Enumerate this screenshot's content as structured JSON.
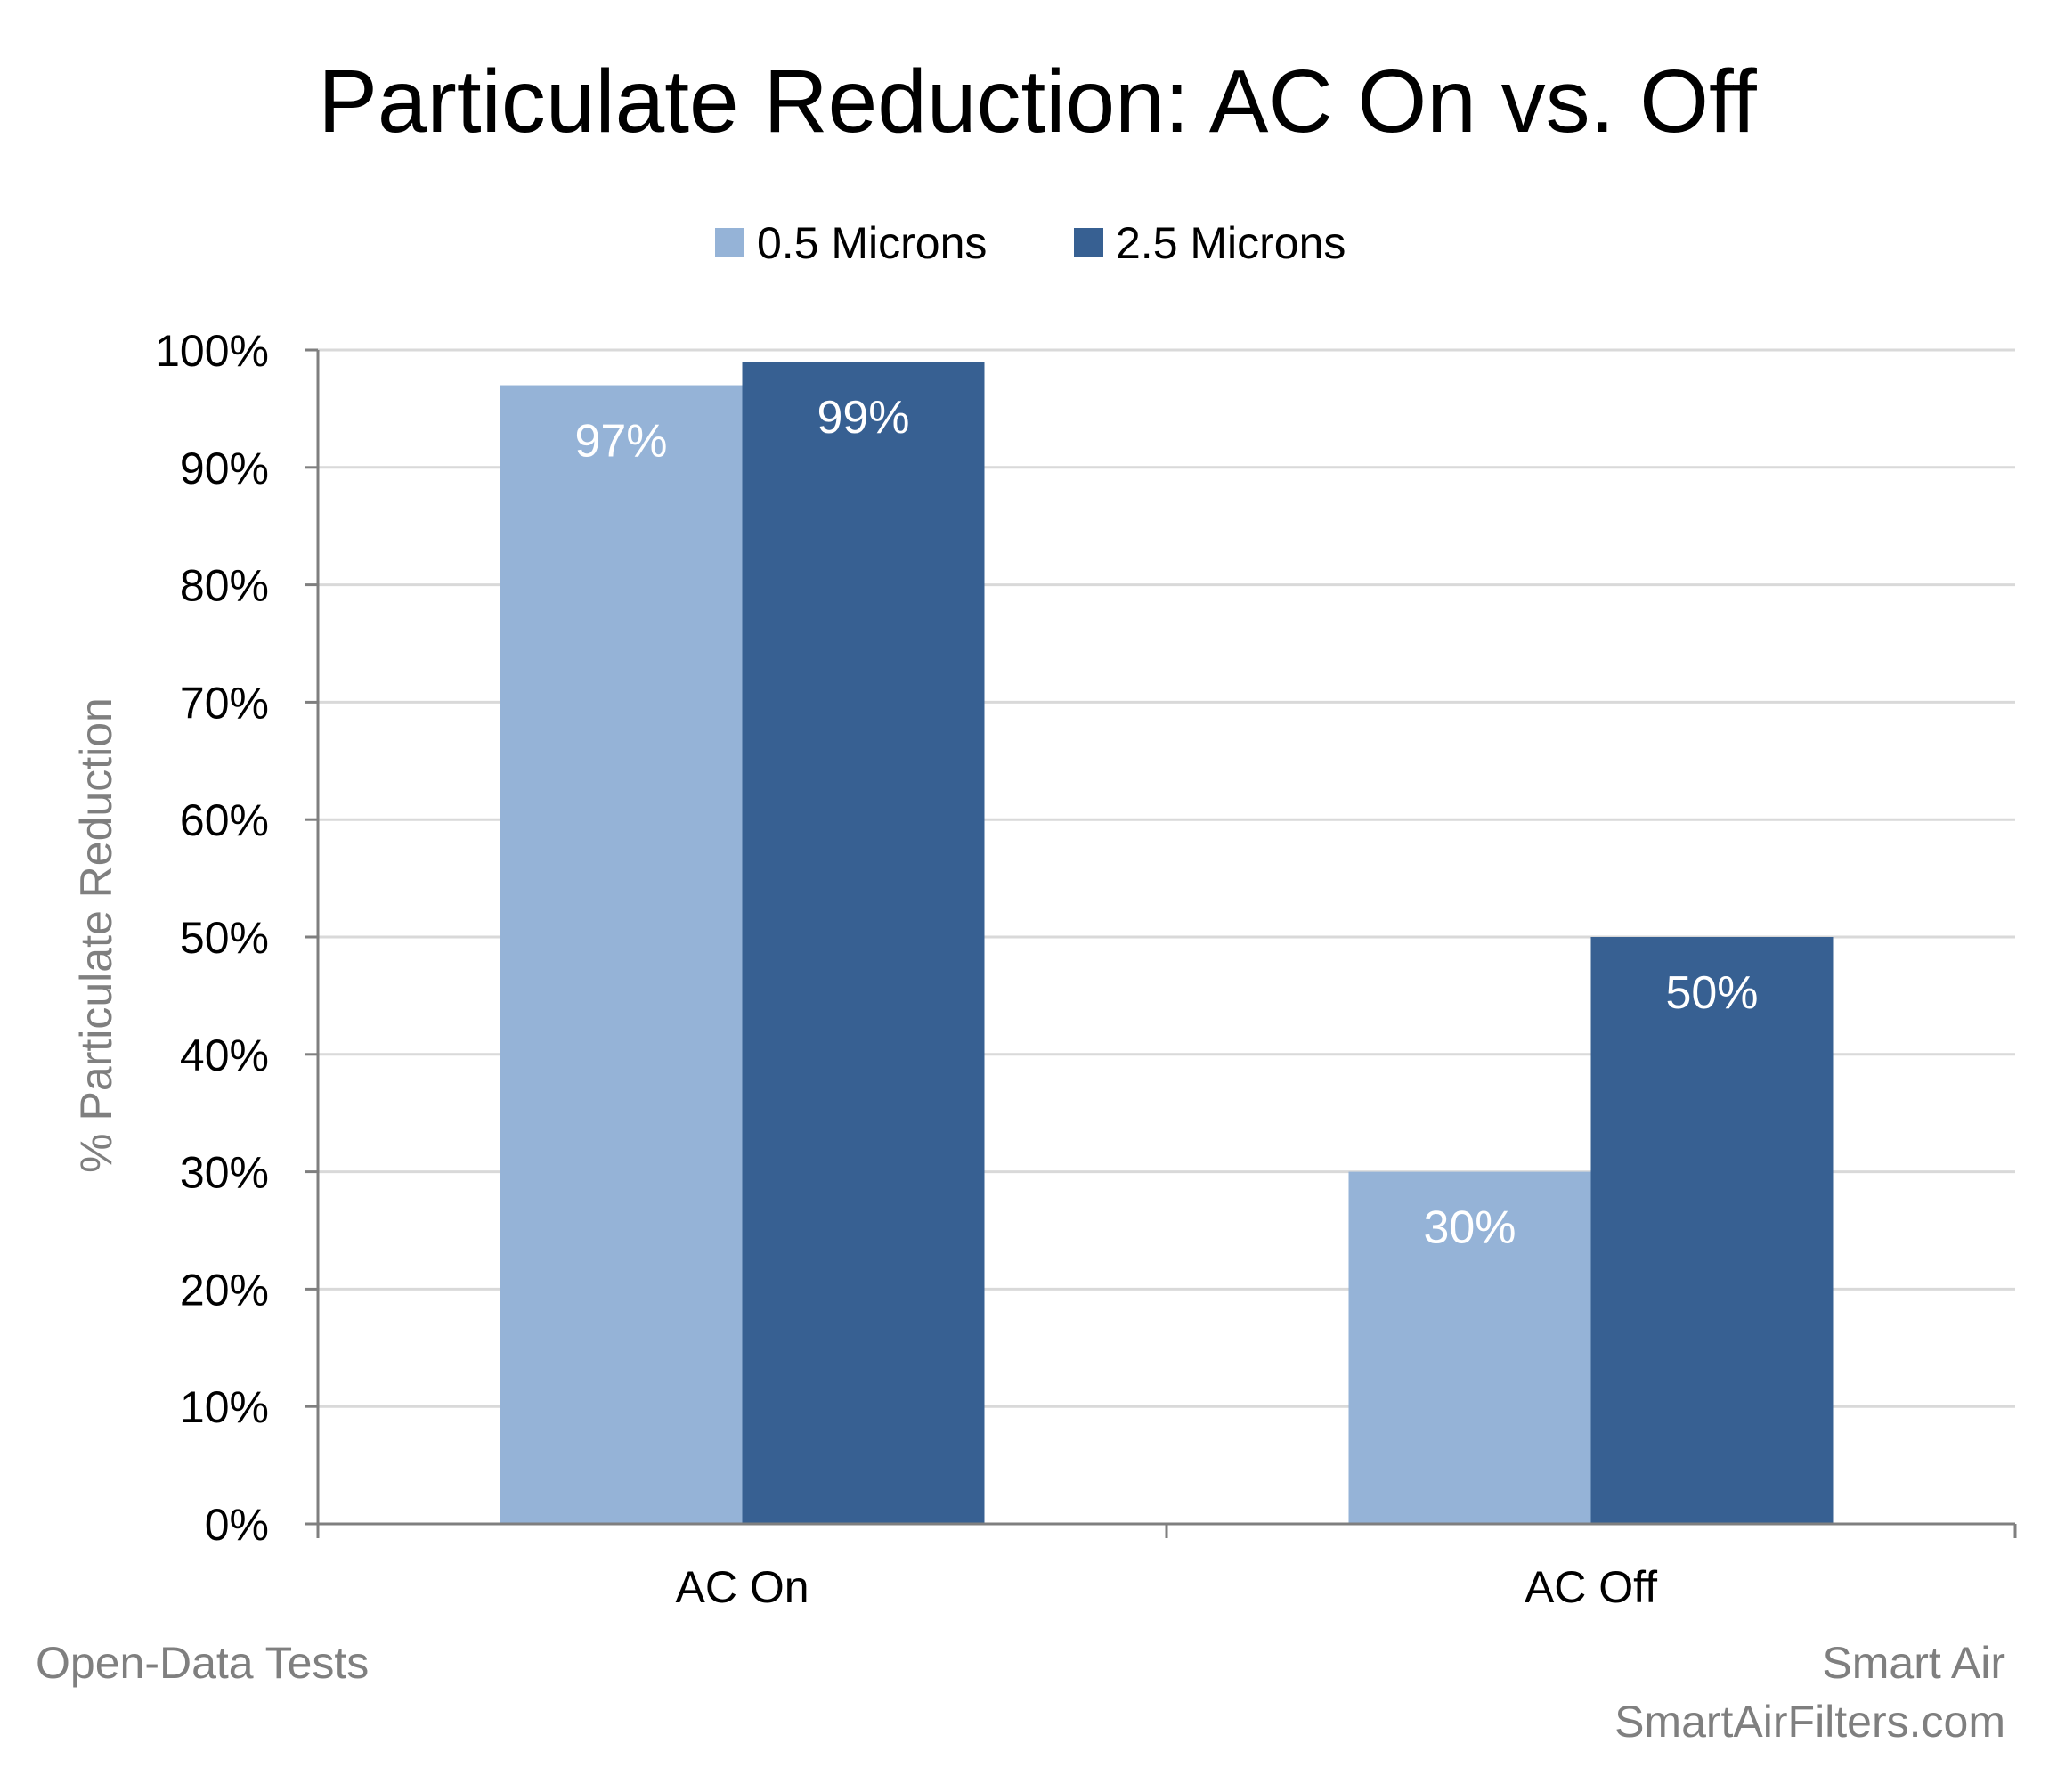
{
  "chart_data": {
    "type": "bar",
    "title": "Particulate Reduction: AC On vs. Off",
    "ylabel": "% Particulate Reduction",
    "xlabel": "",
    "categories": [
      "AC On",
      "AC Off"
    ],
    "series": [
      {
        "name": "0.5 Microns",
        "values": [
          97,
          30
        ],
        "labels": [
          "97%",
          "30%"
        ],
        "color": "#95b3d7"
      },
      {
        "name": "2.5 Microns",
        "values": [
          99,
          50
        ],
        "labels": [
          "99%",
          "50%"
        ],
        "color": "#376092"
      }
    ],
    "ylim": [
      0,
      100
    ],
    "yticks": [
      0,
      10,
      20,
      30,
      40,
      50,
      60,
      70,
      80,
      90,
      100
    ],
    "ytick_labels": [
      "0%",
      "10%",
      "20%",
      "30%",
      "40%",
      "50%",
      "60%",
      "70%",
      "80%",
      "90%",
      "100%"
    ],
    "grid": true,
    "legend_position": "top-center"
  },
  "footer": {
    "left": "Open-Data Tests",
    "right_line1": "Smart Air",
    "right_line2": "SmartAirFilters.com"
  },
  "colors": {
    "gridline": "#d9d9d9",
    "axis": "#7f7f7f",
    "footer_text": "#7f7f7f"
  }
}
